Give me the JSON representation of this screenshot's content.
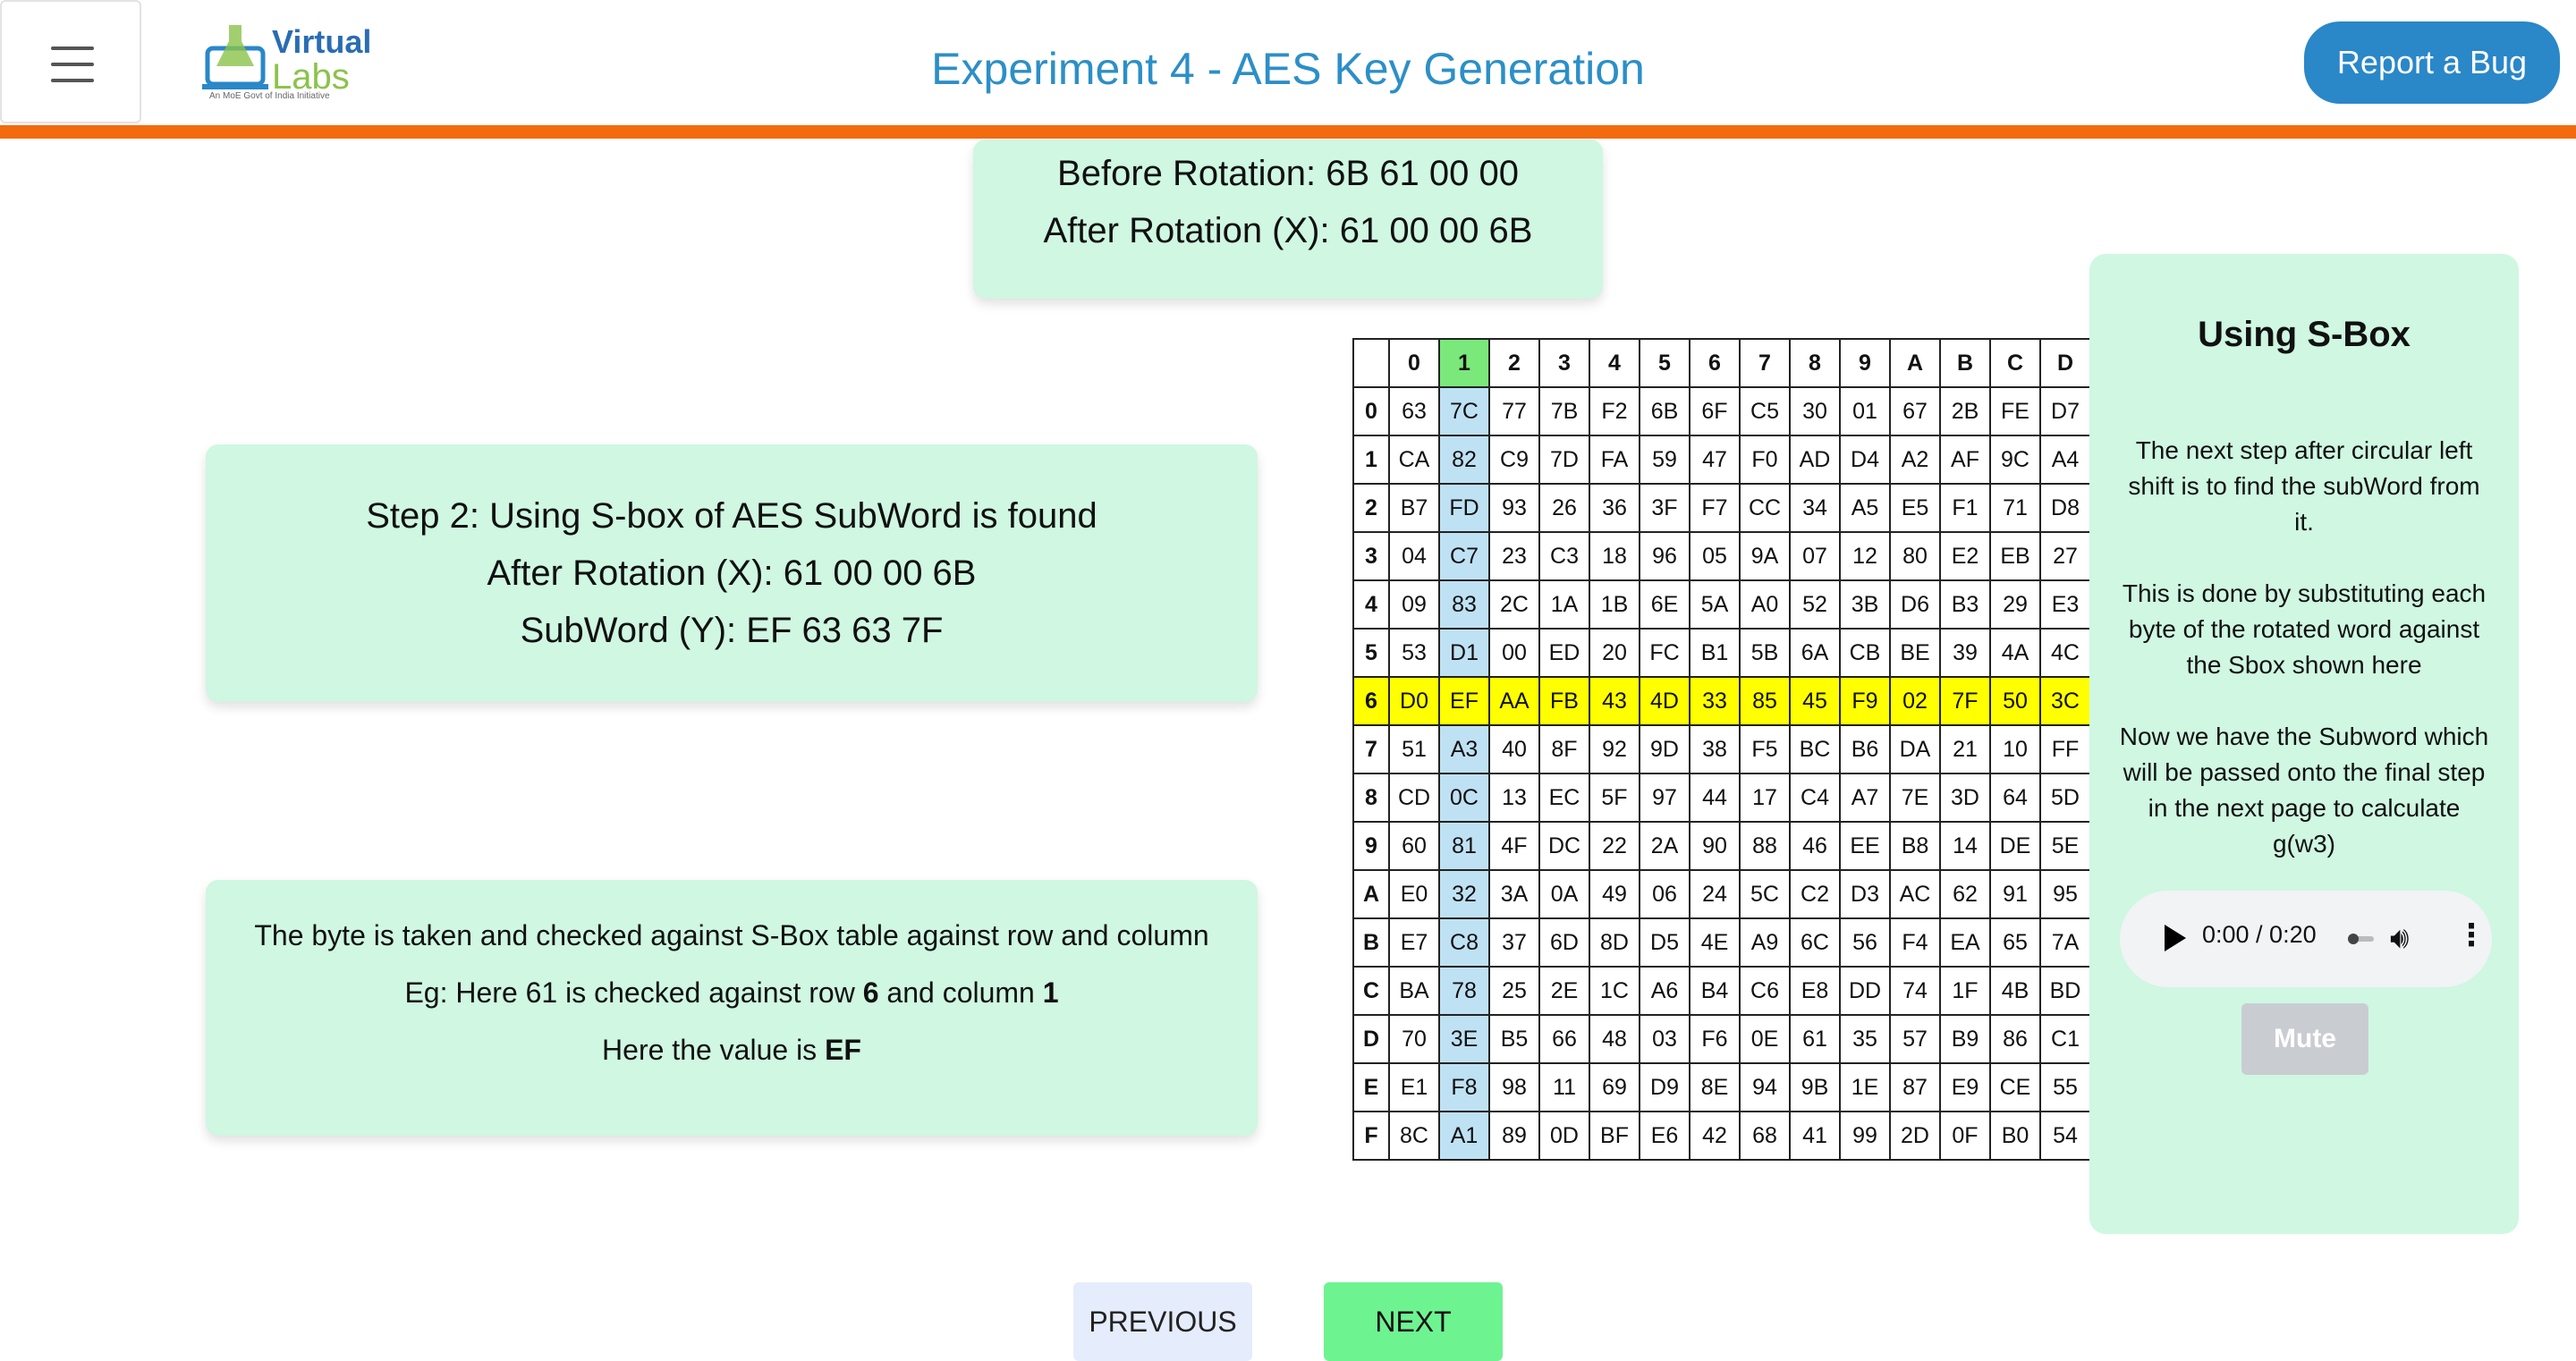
{
  "header": {
    "title": "Experiment 4 - AES Key Generation",
    "logo": {
      "line1": "Virtual",
      "line2": "Labs",
      "tagline": "An MoE Govt of India Initiative"
    },
    "report_bug": "Report a Bug"
  },
  "rotation": {
    "before": "Before Rotation: 6B 61 00 00",
    "after": "After Rotation (X): 61 00 00 6B"
  },
  "step": {
    "line1": "Step 2: Using S-box of AES SubWord is found",
    "line2": "After Rotation (X): 61 00 00 6B",
    "line3": "SubWord (Y): EF 63 63 7F"
  },
  "info": {
    "line1": "The byte is taken and checked against S-Box table against row and column",
    "line2_pre": "Eg: Here 61 is checked against row ",
    "line2_row": "6",
    "line2_mid": " and column ",
    "line2_col": "1",
    "line3_pre": "Here the value is ",
    "line3_val": "EF"
  },
  "sbox": {
    "col_headers": [
      "0",
      "1",
      "2",
      "3",
      "4",
      "5",
      "6",
      "7",
      "8",
      "9",
      "A",
      "B",
      "C",
      "D"
    ],
    "row_headers": [
      "0",
      "1",
      "2",
      "3",
      "4",
      "5",
      "6",
      "7",
      "8",
      "9",
      "A",
      "B",
      "C",
      "D",
      "E",
      "F"
    ],
    "highlight_row": "6",
    "highlight_col": "1",
    "rows": [
      [
        "63",
        "7C",
        "77",
        "7B",
        "F2",
        "6B",
        "6F",
        "C5",
        "30",
        "01",
        "67",
        "2B",
        "FE",
        "D7"
      ],
      [
        "CA",
        "82",
        "C9",
        "7D",
        "FA",
        "59",
        "47",
        "F0",
        "AD",
        "D4",
        "A2",
        "AF",
        "9C",
        "A4"
      ],
      [
        "B7",
        "FD",
        "93",
        "26",
        "36",
        "3F",
        "F7",
        "CC",
        "34",
        "A5",
        "E5",
        "F1",
        "71",
        "D8"
      ],
      [
        "04",
        "C7",
        "23",
        "C3",
        "18",
        "96",
        "05",
        "9A",
        "07",
        "12",
        "80",
        "E2",
        "EB",
        "27"
      ],
      [
        "09",
        "83",
        "2C",
        "1A",
        "1B",
        "6E",
        "5A",
        "A0",
        "52",
        "3B",
        "D6",
        "B3",
        "29",
        "E3"
      ],
      [
        "53",
        "D1",
        "00",
        "ED",
        "20",
        "FC",
        "B1",
        "5B",
        "6A",
        "CB",
        "BE",
        "39",
        "4A",
        "4C"
      ],
      [
        "D0",
        "EF",
        "AA",
        "FB",
        "43",
        "4D",
        "33",
        "85",
        "45",
        "F9",
        "02",
        "7F",
        "50",
        "3C"
      ],
      [
        "51",
        "A3",
        "40",
        "8F",
        "92",
        "9D",
        "38",
        "F5",
        "BC",
        "B6",
        "DA",
        "21",
        "10",
        "FF"
      ],
      [
        "CD",
        "0C",
        "13",
        "EC",
        "5F",
        "97",
        "44",
        "17",
        "C4",
        "A7",
        "7E",
        "3D",
        "64",
        "5D"
      ],
      [
        "60",
        "81",
        "4F",
        "DC",
        "22",
        "2A",
        "90",
        "88",
        "46",
        "EE",
        "B8",
        "14",
        "DE",
        "5E"
      ],
      [
        "E0",
        "32",
        "3A",
        "0A",
        "49",
        "06",
        "24",
        "5C",
        "C2",
        "D3",
        "AC",
        "62",
        "91",
        "95"
      ],
      [
        "E7",
        "C8",
        "37",
        "6D",
        "8D",
        "D5",
        "4E",
        "A9",
        "6C",
        "56",
        "F4",
        "EA",
        "65",
        "7A"
      ],
      [
        "BA",
        "78",
        "25",
        "2E",
        "1C",
        "A6",
        "B4",
        "C6",
        "E8",
        "DD",
        "74",
        "1F",
        "4B",
        "BD"
      ],
      [
        "70",
        "3E",
        "B5",
        "66",
        "48",
        "03",
        "F6",
        "0E",
        "61",
        "35",
        "57",
        "B9",
        "86",
        "C1"
      ],
      [
        "E1",
        "F8",
        "98",
        "11",
        "69",
        "D9",
        "8E",
        "94",
        "9B",
        "1E",
        "87",
        "E9",
        "CE",
        "55"
      ],
      [
        "8C",
        "A1",
        "89",
        "0D",
        "BF",
        "E6",
        "42",
        "68",
        "41",
        "99",
        "2D",
        "0F",
        "B0",
        "54"
      ]
    ]
  },
  "side_panel": {
    "title": "Using S-Box",
    "p1": "The next step after circular left shift is to find the subWord from it.",
    "p2": "This is done by substituting each byte of the rotated word against the Sbox shown here",
    "p3": "Now we have the Subword which will be passed onto the final step in the next page to calculate g(w3)",
    "audio_time": "0:00 / 0:20",
    "mute": "Mute"
  },
  "nav": {
    "previous": "PREVIOUS",
    "next": "NEXT"
  }
}
